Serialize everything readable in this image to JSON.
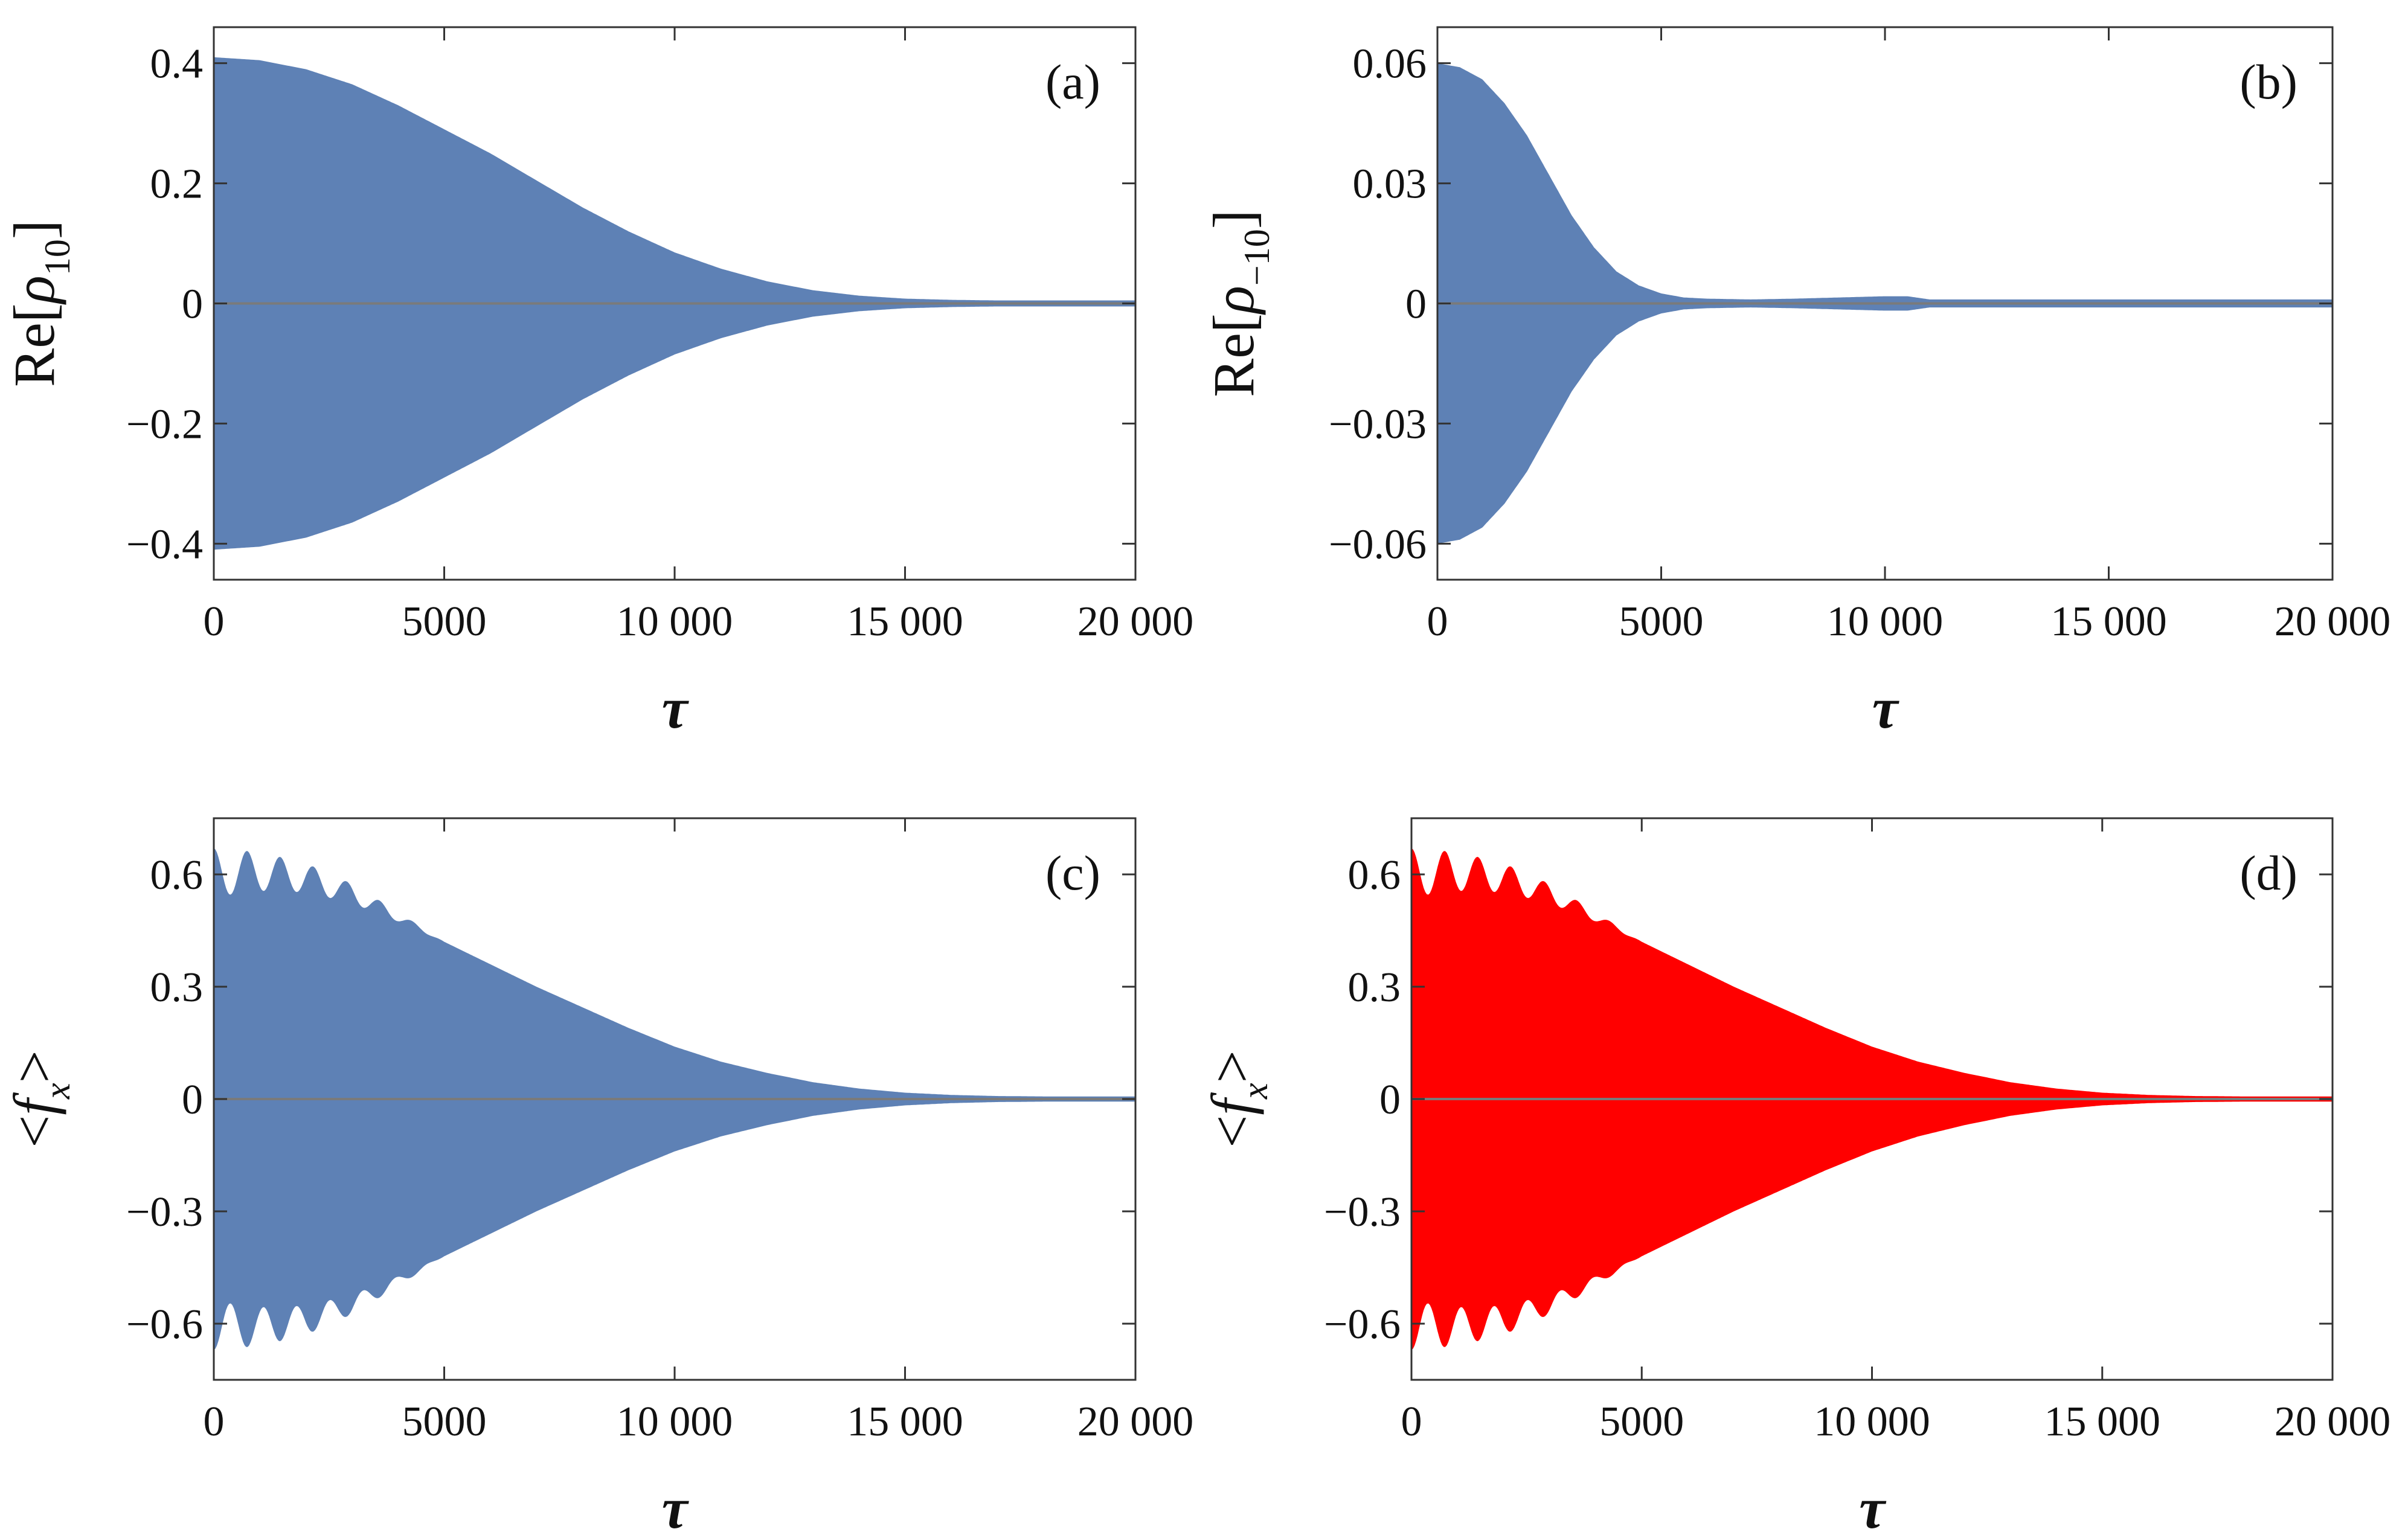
{
  "figure": {
    "background": "#ffffff"
  },
  "chart_data": [
    {
      "type": "area",
      "panel": "(a)",
      "title": "",
      "xlabel": "τ",
      "ylabel": "Re[ρ10]",
      "ylabel_main": "Re[",
      "ylabel_symbol": "ρ",
      "ylabel_sub": "10",
      "ylabel_close": "]",
      "xlim": [
        0,
        20000
      ],
      "ylim": [
        -0.46,
        0.46
      ],
      "xticks": [
        0,
        5000,
        10000,
        15000,
        20000
      ],
      "xtick_labels": [
        "0",
        "5000",
        "10 000",
        "15 000",
        "20 000"
      ],
      "yticks": [
        0.4,
        0.2,
        0,
        -0.2,
        -0.4
      ],
      "ytick_labels": [
        "0.4",
        "0.2",
        "0",
        "−0.2",
        "−0.4"
      ],
      "fill_color": "#5e81b5",
      "series": [
        {
          "name": "oscillation envelope (±)",
          "x": [
            0,
            1000,
            2000,
            3000,
            4000,
            5000,
            6000,
            7000,
            8000,
            9000,
            10000,
            11000,
            12000,
            13000,
            14000,
            15000,
            16000,
            17000,
            18000,
            19000,
            20000
          ],
          "upper": [
            0.41,
            0.405,
            0.39,
            0.365,
            0.33,
            0.29,
            0.25,
            0.205,
            0.16,
            0.12,
            0.085,
            0.058,
            0.037,
            0.022,
            0.013,
            0.008,
            0.006,
            0.005,
            0.005,
            0.005,
            0.005
          ],
          "lower": [
            -0.41,
            -0.405,
            -0.39,
            -0.365,
            -0.33,
            -0.29,
            -0.25,
            -0.205,
            -0.16,
            -0.12,
            -0.085,
            -0.058,
            -0.037,
            -0.022,
            -0.013,
            -0.008,
            -0.006,
            -0.005,
            -0.005,
            -0.005,
            -0.005
          ]
        }
      ]
    },
    {
      "type": "area",
      "panel": "(b)",
      "title": "",
      "xlabel": "τ",
      "ylabel": "Re[ρ−10]",
      "ylabel_main": "Re[",
      "ylabel_symbol": "ρ",
      "ylabel_sub": "−10",
      "ylabel_close": "]",
      "xlim": [
        0,
        20000
      ],
      "ylim": [
        -0.069,
        0.069
      ],
      "xticks": [
        0,
        5000,
        10000,
        15000,
        20000
      ],
      "xtick_labels": [
        "0",
        "5000",
        "10 000",
        "15 000",
        "20 000"
      ],
      "yticks": [
        0.06,
        0.03,
        0,
        -0.03,
        -0.06
      ],
      "ytick_labels": [
        "0.06",
        "0.03",
        "0",
        "−0.03",
        "−0.06"
      ],
      "fill_color": "#5e81b5",
      "series": [
        {
          "name": "oscillation envelope (±)",
          "x": [
            0,
            500,
            1000,
            1500,
            2000,
            2500,
            3000,
            3500,
            4000,
            4500,
            5000,
            5500,
            6000,
            7000,
            8000,
            9000,
            10000,
            10500,
            11000,
            12000,
            15000,
            20000
          ],
          "upper": [
            0.06,
            0.059,
            0.056,
            0.05,
            0.042,
            0.032,
            0.022,
            0.014,
            0.008,
            0.0045,
            0.0025,
            0.0015,
            0.0012,
            0.001,
            0.0012,
            0.0015,
            0.0018,
            0.0018,
            0.001,
            0.001,
            0.001,
            0.001
          ],
          "lower": [
            -0.06,
            -0.059,
            -0.056,
            -0.05,
            -0.042,
            -0.032,
            -0.022,
            -0.014,
            -0.008,
            -0.0045,
            -0.0025,
            -0.0015,
            -0.0012,
            -0.001,
            -0.0012,
            -0.0015,
            -0.0018,
            -0.0018,
            -0.001,
            -0.001,
            -0.001,
            -0.001
          ]
        }
      ]
    },
    {
      "type": "area",
      "panel": "(c)",
      "title": "",
      "xlabel": "τ",
      "ylabel": "<fx>",
      "ylabel_main": "<",
      "ylabel_symbol": "f",
      "ylabel_sub": "x",
      "ylabel_close": ">",
      "xlim": [
        0,
        20000
      ],
      "ylim": [
        -0.75,
        0.75
      ],
      "xticks": [
        0,
        5000,
        10000,
        15000,
        20000
      ],
      "xtick_labels": [
        "0",
        "5000",
        "10 000",
        "15 000",
        "20 000"
      ],
      "yticks": [
        0.6,
        0.3,
        0,
        -0.3,
        -0.6
      ],
      "ytick_labels": [
        "0.6",
        "0.3",
        "0",
        "−0.3",
        "−0.6"
      ],
      "fill_color": "#5e81b5",
      "series": [
        {
          "name": "oscillation envelope (±)",
          "x": [
            0,
            1000,
            2000,
            3000,
            4000,
            5000,
            6000,
            7000,
            8000,
            9000,
            10000,
            11000,
            12000,
            13000,
            14000,
            15000,
            16000,
            17000,
            18000,
            19000,
            20000
          ],
          "upper": [
            0.67,
            0.66,
            0.63,
            0.575,
            0.5,
            0.42,
            0.36,
            0.3,
            0.245,
            0.19,
            0.14,
            0.1,
            0.07,
            0.045,
            0.028,
            0.017,
            0.011,
            0.008,
            0.007,
            0.007,
            0.007
          ],
          "lower": [
            -0.67,
            -0.66,
            -0.63,
            -0.575,
            -0.5,
            -0.42,
            -0.36,
            -0.3,
            -0.245,
            -0.19,
            -0.14,
            -0.1,
            -0.07,
            -0.045,
            -0.028,
            -0.017,
            -0.011,
            -0.008,
            -0.007,
            -0.007,
            -0.007
          ]
        }
      ],
      "ripple": {
        "period": 720,
        "depth": 0.13,
        "fade_until": 5000
      }
    },
    {
      "type": "area",
      "panel": "(d)",
      "title": "",
      "xlabel": "τ",
      "ylabel": "<fx>",
      "ylabel_main": "<",
      "ylabel_symbol": "f",
      "ylabel_sub": "x",
      "ylabel_close": ">",
      "xlim": [
        0,
        20000
      ],
      "ylim": [
        -0.75,
        0.75
      ],
      "xticks": [
        0,
        5000,
        10000,
        15000,
        20000
      ],
      "xtick_labels": [
        "0",
        "5000",
        "10 000",
        "15 000",
        "20 000"
      ],
      "yticks": [
        0.6,
        0.3,
        0,
        -0.3,
        -0.6
      ],
      "ytick_labels": [
        "0.6",
        "0.3",
        "0",
        "−0.3",
        "−0.6"
      ],
      "fill_color": "#ff0000",
      "series": [
        {
          "name": "oscillation envelope (±)",
          "x": [
            0,
            1000,
            2000,
            3000,
            4000,
            5000,
            6000,
            7000,
            8000,
            9000,
            10000,
            11000,
            12000,
            13000,
            14000,
            15000,
            16000,
            17000,
            18000,
            19000,
            20000
          ],
          "upper": [
            0.67,
            0.66,
            0.63,
            0.575,
            0.5,
            0.42,
            0.36,
            0.3,
            0.245,
            0.19,
            0.14,
            0.1,
            0.07,
            0.045,
            0.028,
            0.017,
            0.011,
            0.008,
            0.007,
            0.007,
            0.007
          ],
          "lower": [
            -0.67,
            -0.66,
            -0.63,
            -0.575,
            -0.5,
            -0.42,
            -0.36,
            -0.3,
            -0.245,
            -0.19,
            -0.14,
            -0.1,
            -0.07,
            -0.045,
            -0.028,
            -0.017,
            -0.011,
            -0.008,
            -0.007,
            -0.007,
            -0.007
          ]
        }
      ],
      "ripple": {
        "period": 720,
        "depth": 0.13,
        "fade_until": 5000
      }
    }
  ]
}
